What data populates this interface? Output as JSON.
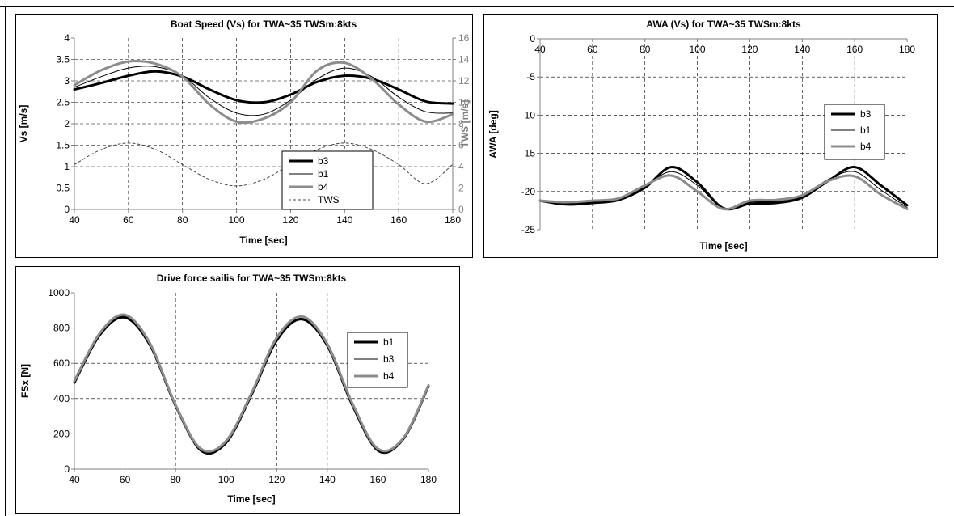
{
  "chart_data": [
    {
      "type": "line",
      "title": "Boat Speed (Vs) for TWA~35 TWSm:8kts",
      "xlabel": "Time [sec]",
      "ylabel": "Vs [m/s]",
      "y2label": "TWS [m/s]",
      "xlim": [
        40,
        180
      ],
      "ylim": [
        0,
        4
      ],
      "y2lim": [
        0,
        16
      ],
      "xticks": [
        "40",
        "60",
        "80",
        "100",
        "120",
        "140",
        "160",
        "180"
      ],
      "yticks": [
        "0",
        "0.5",
        "1",
        "1.5",
        "2",
        "2.5",
        "3",
        "3.5",
        "4"
      ],
      "y2ticks": [
        "0",
        "2",
        "4",
        "6",
        "8",
        "10",
        "12",
        "14",
        "16"
      ],
      "grid": true,
      "legend": "center-right",
      "x": [
        40,
        50,
        60,
        70,
        80,
        90,
        100,
        110,
        120,
        130,
        140,
        150,
        160,
        170,
        180
      ],
      "series": [
        {
          "name": "b3",
          "axis": "left",
          "color": "#000000",
          "width": 3,
          "values": [
            2.8,
            2.95,
            3.12,
            3.22,
            3.1,
            2.8,
            2.55,
            2.5,
            2.68,
            2.98,
            3.12,
            3.05,
            2.8,
            2.52,
            2.47
          ]
        },
        {
          "name": "b1",
          "axis": "left",
          "color": "#000000",
          "width": 1,
          "values": [
            2.85,
            3.1,
            3.3,
            3.33,
            3.12,
            2.6,
            2.25,
            2.22,
            2.55,
            3.05,
            3.3,
            3.1,
            2.62,
            2.28,
            2.25
          ]
        },
        {
          "name": "b4",
          "axis": "left",
          "color": "#8c8c8c",
          "width": 3,
          "values": [
            2.9,
            3.25,
            3.45,
            3.4,
            3.1,
            2.45,
            2.05,
            2.12,
            2.5,
            3.25,
            3.42,
            3.05,
            2.45,
            2.05,
            2.22
          ]
        },
        {
          "name": "TWS",
          "axis": "right",
          "color": "#444444",
          "width": 1,
          "dash": "3,3",
          "values": [
            4.2,
            5.6,
            6.2,
            5.6,
            4.2,
            2.8,
            2.2,
            2.8,
            4.2,
            5.6,
            6.2,
            5.6,
            4.2,
            2.4,
            4.2
          ]
        }
      ]
    },
    {
      "type": "line",
      "title": "AWA (Vs) for TWA~35 TWSm:8kts",
      "xlabel": "Time [sec]",
      "ylabel": "AWA [deg]",
      "xlim": [
        40,
        180
      ],
      "ylim": [
        -25,
        0
      ],
      "xticks": [
        "40",
        "60",
        "80",
        "100",
        "120",
        "140",
        "160",
        "180"
      ],
      "yticks": [
        "-25",
        "-20",
        "-15",
        "-10",
        "-5",
        "0"
      ],
      "grid": true,
      "legend": "right",
      "x": [
        40,
        50,
        60,
        70,
        80,
        90,
        100,
        110,
        120,
        130,
        140,
        150,
        160,
        170,
        180
      ],
      "series": [
        {
          "name": "b3",
          "color": "#000000",
          "width": 3,
          "values": [
            -21.2,
            -21.7,
            -21.5,
            -21.1,
            -19.5,
            -16.8,
            -18.8,
            -22.2,
            -21.6,
            -21.5,
            -20.8,
            -18.6,
            -16.8,
            -19.2,
            -21.8
          ]
        },
        {
          "name": "b1",
          "color": "#000000",
          "width": 1,
          "values": [
            -21.2,
            -21.5,
            -21.3,
            -21.0,
            -19.3,
            -17.4,
            -19.2,
            -22.2,
            -21.4,
            -21.3,
            -20.6,
            -18.4,
            -17.4,
            -19.8,
            -22.1
          ]
        },
        {
          "name": "b4",
          "color": "#8c8c8c",
          "width": 3,
          "values": [
            -21.2,
            -21.4,
            -21.2,
            -20.9,
            -19.2,
            -17.9,
            -20.0,
            -22.3,
            -21.2,
            -21.1,
            -20.5,
            -18.6,
            -18.0,
            -20.4,
            -22.3
          ]
        }
      ]
    },
    {
      "type": "line",
      "title": "Drive force sailis for TWA~35 TWSm:8kts",
      "xlabel": "Time [sec]",
      "ylabel": "FSx [N]",
      "xlim": [
        40,
        180
      ],
      "ylim": [
        0,
        1000
      ],
      "xticks": [
        "40",
        "60",
        "80",
        "100",
        "120",
        "140",
        "160",
        "180"
      ],
      "yticks": [
        "0",
        "200",
        "400",
        "600",
        "800",
        "1000"
      ],
      "grid": true,
      "legend": "right",
      "x": [
        40,
        50,
        60,
        70,
        80,
        90,
        100,
        110,
        120,
        130,
        140,
        150,
        160,
        170,
        180
      ],
      "series": [
        {
          "name": "b1",
          "color": "#000000",
          "width": 3,
          "values": [
            490,
            760,
            860,
            700,
            360,
            110,
            150,
            420,
            730,
            850,
            700,
            360,
            110,
            170,
            470
          ]
        },
        {
          "name": "b3",
          "color": "#000000",
          "width": 1,
          "values": [
            490,
            760,
            865,
            700,
            355,
            100,
            145,
            420,
            730,
            855,
            700,
            350,
            100,
            165,
            470
          ]
        },
        {
          "name": "b4",
          "color": "#8c8c8c",
          "width": 3,
          "values": [
            500,
            770,
            875,
            710,
            365,
            115,
            160,
            430,
            745,
            865,
            710,
            370,
            115,
            175,
            475
          ]
        }
      ]
    }
  ]
}
